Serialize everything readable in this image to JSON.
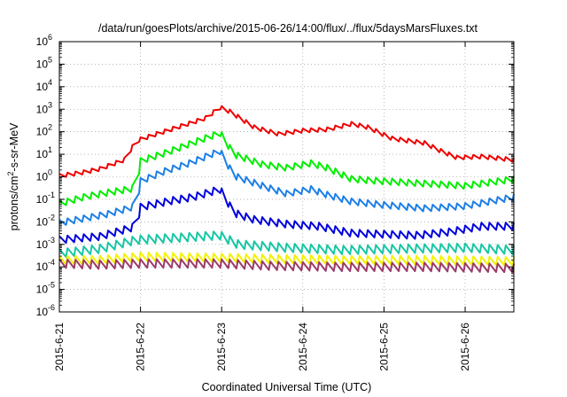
{
  "chart_data": {
    "type": "line",
    "title": "/data/run/goesPlots/archive/2015-06-26/14:00/flux/../flux/5daysMarsFluxes.txt",
    "xlabel": "Coordinated Universal Time (UTC)",
    "ylabel": {
      "pre": "protons/cm",
      "sup": "2",
      "post": "-s-sr-MeV"
    },
    "yscale": "log",
    "ylim": [
      1e-06,
      1000000.0
    ],
    "xlim": [
      0,
      5.6
    ],
    "grid": true,
    "x_ticks": [
      {
        "x": 0,
        "label": "2015-6-21"
      },
      {
        "x": 1,
        "label": "2015-6-22"
      },
      {
        "x": 2,
        "label": "2015-6-23"
      },
      {
        "x": 3,
        "label": "2015-6-24"
      },
      {
        "x": 4,
        "label": "2015-6-25"
      },
      {
        "x": 5,
        "label": "2015-6-26"
      }
    ],
    "y_ticks": [
      {
        "exp": -6,
        "label": "10",
        "sup": "-6"
      },
      {
        "exp": -5,
        "label": "10",
        "sup": "-5"
      },
      {
        "exp": -4,
        "label": "10",
        "sup": "-4"
      },
      {
        "exp": -3,
        "label": "10",
        "sup": "-3"
      },
      {
        "exp": -2,
        "label": "10",
        "sup": "-2"
      },
      {
        "exp": -1,
        "label": "10",
        "sup": "-1"
      },
      {
        "exp": 0,
        "label": "10",
        "sup": "0"
      },
      {
        "exp": 1,
        "label": "10",
        "sup": "1"
      },
      {
        "exp": 2,
        "label": "10",
        "sup": "2"
      },
      {
        "exp": 3,
        "label": "10",
        "sup": "3"
      },
      {
        "exp": 4,
        "label": "10",
        "sup": "4"
      },
      {
        "exp": 5,
        "label": "10",
        "sup": "5"
      },
      {
        "exp": 6,
        "label": "10",
        "sup": "6"
      }
    ],
    "series": [
      {
        "color": "#ee0000",
        "tooth": 0.18,
        "points": [
          [
            0,
            0.04
          ],
          [
            0.3,
            0.2
          ],
          [
            0.5,
            0.35
          ],
          [
            0.8,
            0.75
          ],
          [
            0.95,
            1.6
          ],
          [
            1.2,
            1.9
          ],
          [
            1.5,
            2.25
          ],
          [
            1.8,
            2.6
          ],
          [
            1.98,
            3.08
          ],
          [
            2.1,
            2.9
          ],
          [
            2.4,
            2.2
          ],
          [
            2.7,
            1.9
          ],
          [
            3.0,
            2.05
          ],
          [
            3.3,
            2.1
          ],
          [
            3.6,
            2.35
          ],
          [
            3.8,
            2.2
          ],
          [
            4.1,
            1.7
          ],
          [
            4.5,
            1.5
          ],
          [
            4.7,
            1.15
          ],
          [
            4.9,
            0.85
          ],
          [
            5.2,
            0.9
          ],
          [
            5.6,
            0.75
          ]
        ]
      },
      {
        "color": "#00ee00",
        "tooth": 0.28,
        "points": [
          [
            0,
            -1.2
          ],
          [
            0.3,
            -0.9
          ],
          [
            0.6,
            -0.7
          ],
          [
            0.95,
            -0.5
          ],
          [
            1.0,
            0.7
          ],
          [
            1.3,
            1.05
          ],
          [
            1.6,
            1.45
          ],
          [
            1.98,
            1.95
          ],
          [
            2.15,
            1.0
          ],
          [
            2.5,
            0.55
          ],
          [
            2.8,
            0.4
          ],
          [
            3.1,
            0.6
          ],
          [
            3.3,
            0.4
          ],
          [
            3.6,
            -0.1
          ],
          [
            4.0,
            -0.2
          ],
          [
            4.5,
            -0.3
          ],
          [
            5.0,
            -0.4
          ],
          [
            5.6,
            -0.1
          ]
        ]
      },
      {
        "color": "#1c7fe6",
        "tooth": 0.28,
        "points": [
          [
            0,
            -2.05
          ],
          [
            0.3,
            -1.85
          ],
          [
            0.6,
            -1.65
          ],
          [
            0.95,
            -1.3
          ],
          [
            1.0,
            -0.2
          ],
          [
            1.3,
            0.25
          ],
          [
            1.6,
            0.6
          ],
          [
            1.98,
            1.15
          ],
          [
            2.15,
            0.05
          ],
          [
            2.5,
            -0.4
          ],
          [
            2.8,
            -0.75
          ],
          [
            3.1,
            -0.55
          ],
          [
            3.3,
            -0.8
          ],
          [
            3.6,
            -1.1
          ],
          [
            4.0,
            -1.25
          ],
          [
            4.5,
            -1.4
          ],
          [
            5.0,
            -1.3
          ],
          [
            5.6,
            -0.9
          ]
        ]
      },
      {
        "color": "#0000dd",
        "tooth": 0.32,
        "points": [
          [
            0,
            -2.8
          ],
          [
            0.5,
            -2.65
          ],
          [
            0.95,
            -2.2
          ],
          [
            1.0,
            -1.35
          ],
          [
            1.4,
            -1.05
          ],
          [
            1.65,
            -0.9
          ],
          [
            1.98,
            -0.55
          ],
          [
            2.15,
            -1.6
          ],
          [
            2.4,
            -1.9
          ],
          [
            2.8,
            -2.1
          ],
          [
            3.2,
            -2.2
          ],
          [
            3.6,
            -2.5
          ],
          [
            4.0,
            -2.55
          ],
          [
            4.4,
            -2.6
          ],
          [
            4.8,
            -2.45
          ],
          [
            5.2,
            -2.2
          ],
          [
            5.6,
            -2.2
          ]
        ]
      },
      {
        "color": "#17c6a4",
        "tooth": 0.38,
        "points": [
          [
            0,
            -3.4
          ],
          [
            0.5,
            -3.2
          ],
          [
            0.95,
            -2.8
          ],
          [
            1.5,
            -2.7
          ],
          [
            1.98,
            -2.6
          ],
          [
            2.2,
            -3.0
          ],
          [
            2.8,
            -3.15
          ],
          [
            3.5,
            -3.25
          ],
          [
            4.2,
            -3.2
          ],
          [
            5.0,
            -3.15
          ],
          [
            5.6,
            -3.25
          ]
        ]
      },
      {
        "color": "#f2f200",
        "tooth": 0.38,
        "points": [
          [
            0,
            -3.7
          ],
          [
            0.5,
            -3.7
          ],
          [
            1.0,
            -3.55
          ],
          [
            1.98,
            -3.6
          ],
          [
            2.6,
            -3.65
          ],
          [
            3.5,
            -3.7
          ],
          [
            4.5,
            -3.7
          ],
          [
            5.6,
            -3.75
          ]
        ]
      },
      {
        "color": "#9b3a6b",
        "tooth": 0.38,
        "points": [
          [
            0,
            -3.85
          ],
          [
            0.5,
            -3.9
          ],
          [
            1.0,
            -3.85
          ],
          [
            1.98,
            -3.85
          ],
          [
            2.6,
            -3.95
          ],
          [
            3.5,
            -4.0
          ],
          [
            4.5,
            -4.0
          ],
          [
            5.6,
            -4.05
          ]
        ]
      }
    ]
  }
}
